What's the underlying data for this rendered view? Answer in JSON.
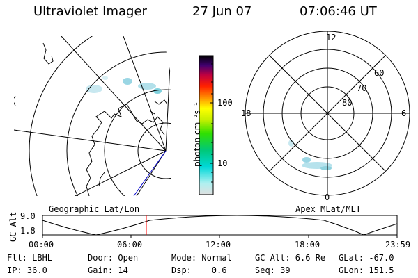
{
  "header": {
    "title": "Ultraviolet Imager",
    "date": "27 Jun 07",
    "time": "07:06:46 UT"
  },
  "colorbar": {
    "unit_label": "photon cm⁻²s⁻¹",
    "tick_labels": [
      "100",
      "10"
    ]
  },
  "polar_plot": {
    "mlt_labels": [
      "12",
      "18",
      "6",
      "0"
    ],
    "lat_labels": [
      "60",
      "70",
      "80"
    ]
  },
  "panel_labels": {
    "left": "Geographic Lat/Lon",
    "right": "Apex MLat/MLT"
  },
  "altitude_panel": {
    "axis_label": "GC Alt",
    "y_ticks": [
      "9.0",
      "1.8"
    ],
    "x_ticks": [
      "00:00",
      "06:00",
      "12:00",
      "18:00",
      "23:59"
    ]
  },
  "info": {
    "flt": "Flt: LBHL",
    "door": "Door: Open",
    "mode": "Mode: Normal",
    "gc_alt": "GC Alt: 6.6 Re",
    "glat": "GLat: -67.0",
    "ip": "IP: 36.0",
    "gain": "Gain: 14",
    "dsp": "Dsp:    0.6",
    "seq": "Seq: 39",
    "glon": "GLon: 151.5"
  },
  "colors": {
    "aurora": "#a8dce6",
    "aurora_bright": "#7fd0dc",
    "time_marker": "#ff0000",
    "satellite_line": "#0000cc"
  }
}
